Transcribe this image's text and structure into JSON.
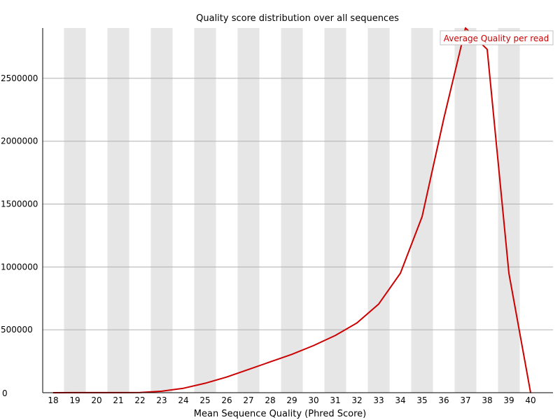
{
  "chart_data": {
    "type": "line",
    "title": "Quality score distribution over all sequences",
    "xlabel": "Mean Sequence Quality (Phred Score)",
    "ylabel": "",
    "x": [
      18,
      19,
      20,
      21,
      22,
      23,
      24,
      25,
      26,
      27,
      28,
      29,
      30,
      31,
      32,
      33,
      34,
      35,
      36,
      37,
      38,
      39,
      40
    ],
    "x_ticks": [
      18,
      19,
      20,
      21,
      22,
      23,
      24,
      25,
      26,
      27,
      28,
      29,
      30,
      31,
      32,
      33,
      34,
      35,
      36,
      37,
      38,
      39,
      40
    ],
    "y_ticks": [
      0,
      500000,
      1000000,
      1500000,
      2000000,
      2500000
    ],
    "ylim": [
      0,
      2900000
    ],
    "xlim": [
      18,
      40
    ],
    "grid": true,
    "band_shading": "alternating",
    "legend_position": "top-right",
    "series": [
      {
        "name": "Average Quality per read",
        "color": "#cc0000",
        "values": [
          0,
          500,
          800,
          1000,
          1500,
          12000,
          35000,
          75000,
          125000,
          185000,
          245000,
          305000,
          375000,
          455000,
          555000,
          705000,
          950000,
          1400000,
          2180000,
          2900000,
          2730000,
          950000,
          0
        ]
      }
    ],
    "colors": {
      "band": "#e6e6e6",
      "gridline": "#b0b0b0",
      "axis": "#000000",
      "legend_border": "#c0c0c0"
    }
  }
}
